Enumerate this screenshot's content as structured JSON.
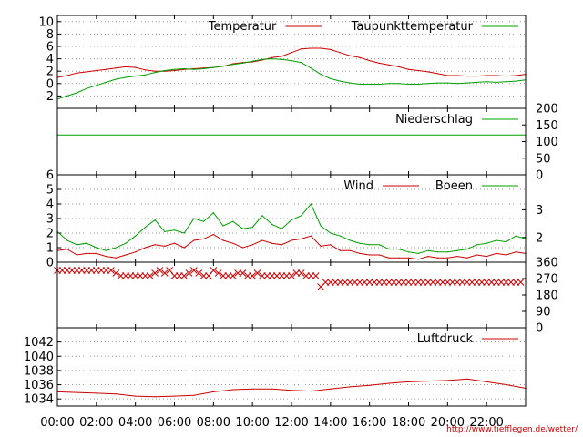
{
  "colors": {
    "red": "#cc0000",
    "green": "#00a000",
    "grid": "#9a9a9a",
    "axis": "#000000",
    "credit": "#d00000"
  },
  "credit_url": "http://www.tiefflegen.de/wetter/",
  "x_axis": {
    "range": [
      0,
      24
    ],
    "tick_labels": [
      "00:00",
      "02:00",
      "04:00",
      "06:00",
      "08:00",
      "10:00",
      "12:00",
      "14:00",
      "16:00",
      "18:00",
      "20:00",
      "22:00"
    ]
  },
  "chart_data": [
    {
      "type": "line",
      "panel": "temperature",
      "ylim": [
        -4,
        11
      ],
      "left_ticks": {
        "values": [
          -2,
          0,
          2,
          4,
          6,
          8,
          10
        ],
        "labels": [
          "-2",
          "0",
          "2",
          "4",
          "6",
          "8",
          "10"
        ]
      },
      "grid": true,
      "legend_placement": "top-right",
      "x": [
        0,
        0.5,
        1,
        1.5,
        2,
        2.5,
        3,
        3.5,
        4,
        4.5,
        5,
        5.5,
        6,
        6.5,
        7,
        7.5,
        8,
        8.5,
        9,
        9.5,
        10,
        10.5,
        11,
        11.5,
        12,
        12.5,
        13,
        13.5,
        14,
        14.5,
        15,
        15.5,
        16,
        16.5,
        17,
        17.5,
        18,
        18.5,
        19,
        19.5,
        20,
        20.5,
        21,
        21.5,
        22,
        22.5,
        23,
        23.5,
        24
      ],
      "series": [
        {
          "name": "Temperatur",
          "color": "#cc0000",
          "values": [
            1.0,
            1.3,
            1.7,
            1.9,
            2.1,
            2.3,
            2.5,
            2.7,
            2.6,
            2.2,
            2.0,
            2.0,
            2.1,
            2.3,
            2.4,
            2.5,
            2.6,
            2.8,
            3.2,
            3.4,
            3.5,
            3.8,
            4.2,
            4.4,
            5.0,
            5.6,
            5.7,
            5.7,
            5.5,
            5.0,
            4.5,
            4.2,
            3.7,
            3.3,
            3.0,
            2.7,
            2.3,
            2.1,
            1.9,
            1.6,
            1.3,
            1.3,
            1.2,
            1.2,
            1.3,
            1.3,
            1.2,
            1.3,
            1.5
          ]
        },
        {
          "name": "Taupunkttemperatur",
          "color": "#00a000",
          "values": [
            -2.5,
            -2.0,
            -1.5,
            -0.8,
            -0.3,
            0.2,
            0.7,
            1.0,
            1.2,
            1.4,
            1.8,
            2.1,
            2.3,
            2.4,
            2.3,
            2.4,
            2.6,
            2.8,
            3.1,
            3.3,
            3.6,
            3.9,
            4.0,
            3.9,
            3.7,
            3.4,
            2.5,
            1.5,
            0.8,
            0.4,
            0.1,
            -0.1,
            -0.1,
            -0.1,
            0.0,
            0.0,
            -0.1,
            -0.1,
            0.0,
            0.1,
            0.1,
            0.0,
            0.1,
            0.2,
            0.3,
            0.2,
            0.3,
            0.4,
            0.6
          ]
        }
      ]
    },
    {
      "type": "line",
      "panel": "precipitation",
      "ylim": [
        0,
        200
      ],
      "right_ticks": {
        "values": [
          0,
          50,
          100,
          150,
          200
        ],
        "labels": [
          "0",
          "50",
          "100",
          "150",
          "200"
        ]
      },
      "legend_placement": "top-right",
      "x": [
        0,
        24
      ],
      "series": [
        {
          "name": "Niederschlag",
          "color": "#00a000",
          "values": [
            120,
            120
          ]
        }
      ]
    },
    {
      "type": "line",
      "panel": "wind",
      "ylim": [
        0,
        6
      ],
      "left_ticks": {
        "values": [
          0,
          1,
          2,
          3,
          4,
          5,
          6
        ],
        "labels": [
          "0",
          "1",
          "2",
          "3",
          "4",
          "5",
          "6"
        ]
      },
      "right_ticks": {
        "values": [
          1.7,
          3.6
        ],
        "labels": [
          "2",
          "3"
        ]
      },
      "grid": true,
      "legend_placement": "top-right",
      "x": [
        0,
        0.5,
        1,
        1.5,
        2,
        2.5,
        3,
        3.5,
        4,
        4.5,
        5,
        5.5,
        6,
        6.5,
        7,
        7.5,
        8,
        8.5,
        9,
        9.5,
        10,
        10.5,
        11,
        11.5,
        12,
        12.5,
        13,
        13.5,
        14,
        14.5,
        15,
        15.5,
        16,
        16.5,
        17,
        17.5,
        18,
        18.5,
        19,
        19.5,
        20,
        20.5,
        21,
        21.5,
        22,
        22.5,
        23,
        23.5,
        24
      ],
      "series": [
        {
          "name": "Wind",
          "color": "#cc0000",
          "values": [
            0.8,
            0.9,
            0.5,
            0.6,
            0.6,
            0.4,
            0.3,
            0.5,
            0.7,
            1.0,
            1.2,
            1.1,
            1.3,
            1.0,
            1.5,
            1.6,
            1.9,
            1.5,
            1.3,
            1.0,
            1.2,
            1.5,
            1.3,
            1.2,
            1.5,
            1.6,
            1.8,
            1.1,
            1.2,
            0.8,
            0.8,
            0.6,
            0.5,
            0.5,
            0.3,
            0.3,
            0.3,
            0.2,
            0.4,
            0.3,
            0.3,
            0.4,
            0.3,
            0.5,
            0.4,
            0.6,
            0.5,
            0.7,
            0.6
          ]
        },
        {
          "name": "Boeen",
          "color": "#00a000",
          "values": [
            2.1,
            1.5,
            1.2,
            1.3,
            1.0,
            0.8,
            1.0,
            1.3,
            1.8,
            2.4,
            2.9,
            2.1,
            2.2,
            2.0,
            3.0,
            2.8,
            3.4,
            2.5,
            2.8,
            2.3,
            2.4,
            3.2,
            2.6,
            2.3,
            2.9,
            3.2,
            4.0,
            2.5,
            2.0,
            1.8,
            1.5,
            1.3,
            1.2,
            1.2,
            0.9,
            0.9,
            0.7,
            0.6,
            0.8,
            0.7,
            0.7,
            0.8,
            0.9,
            1.2,
            1.3,
            1.5,
            1.4,
            1.8,
            1.6
          ]
        }
      ]
    },
    {
      "type": "scatter",
      "panel": "wind_direction",
      "ylim": [
        0,
        360
      ],
      "right_ticks": {
        "values": [
          0,
          90,
          180,
          270,
          360
        ],
        "labels": [
          "0",
          "90",
          "180",
          "270",
          "360"
        ]
      },
      "marker": "x",
      "x": [
        0,
        0.25,
        0.5,
        0.75,
        1,
        1.25,
        1.5,
        1.75,
        2,
        2.25,
        2.5,
        2.75,
        3,
        3.25,
        3.5,
        3.75,
        4,
        4.25,
        4.5,
        4.75,
        5,
        5.25,
        5.5,
        5.75,
        6,
        6.25,
        6.5,
        6.75,
        7,
        7.25,
        7.5,
        7.75,
        8,
        8.25,
        8.5,
        8.75,
        9,
        9.25,
        9.5,
        9.75,
        10,
        10.25,
        10.5,
        10.75,
        11,
        11.25,
        11.5,
        11.75,
        12,
        12.25,
        12.5,
        12.75,
        13,
        13.25,
        13.5,
        13.75,
        14,
        14.25,
        14.5,
        14.75,
        15,
        15.25,
        15.5,
        15.75,
        16,
        16.25,
        16.5,
        16.75,
        17,
        17.25,
        17.5,
        17.75,
        18,
        18.25,
        18.5,
        18.75,
        19,
        19.25,
        19.5,
        19.75,
        20,
        20.25,
        20.5,
        20.75,
        21,
        21.25,
        21.5,
        21.75,
        22,
        22.25,
        22.5,
        22.75,
        23,
        23.25,
        23.5,
        23.75
      ],
      "values": [
        315,
        315,
        315,
        315,
        315,
        315,
        315,
        315,
        315,
        315,
        315,
        315,
        300,
        285,
        285,
        285,
        285,
        285,
        285,
        285,
        300,
        315,
        300,
        315,
        285,
        285,
        285,
        300,
        315,
        300,
        285,
        285,
        315,
        300,
        285,
        285,
        285,
        300,
        300,
        285,
        285,
        300,
        285,
        285,
        285,
        285,
        285,
        285,
        285,
        300,
        300,
        285,
        285,
        285,
        225,
        250,
        250,
        250,
        250,
        250,
        250,
        250,
        250,
        250,
        250,
        250,
        250,
        250,
        250,
        250,
        250,
        250,
        250,
        250,
        250,
        250,
        250,
        250,
        250,
        250,
        250,
        250,
        250,
        250,
        250,
        250,
        250,
        250,
        250,
        250,
        250,
        250,
        250,
        250,
        250,
        250
      ]
    },
    {
      "type": "line",
      "panel": "pressure",
      "ylim": [
        1033,
        1044
      ],
      "left_ticks": {
        "values": [
          1034,
          1036,
          1038,
          1040,
          1042
        ],
        "labels": [
          "1034",
          "1036",
          "1038",
          "1040",
          "1042"
        ]
      },
      "grid": true,
      "legend_placement": "top-right",
      "x": [
        0,
        1,
        2,
        3,
        4,
        5,
        6,
        7,
        8,
        9,
        10,
        11,
        12,
        13,
        14,
        15,
        16,
        17,
        18,
        19,
        20,
        21,
        22,
        23,
        24
      ],
      "series": [
        {
          "name": "Luftdruck",
          "color": "#cc0000",
          "values": [
            1035.0,
            1034.9,
            1034.8,
            1034.7,
            1034.4,
            1034.3,
            1034.4,
            1034.5,
            1035.0,
            1035.3,
            1035.4,
            1035.4,
            1035.2,
            1035.1,
            1035.4,
            1035.7,
            1035.9,
            1036.2,
            1036.4,
            1036.5,
            1036.6,
            1036.8,
            1036.4,
            1036.0,
            1035.5
          ]
        }
      ]
    }
  ]
}
